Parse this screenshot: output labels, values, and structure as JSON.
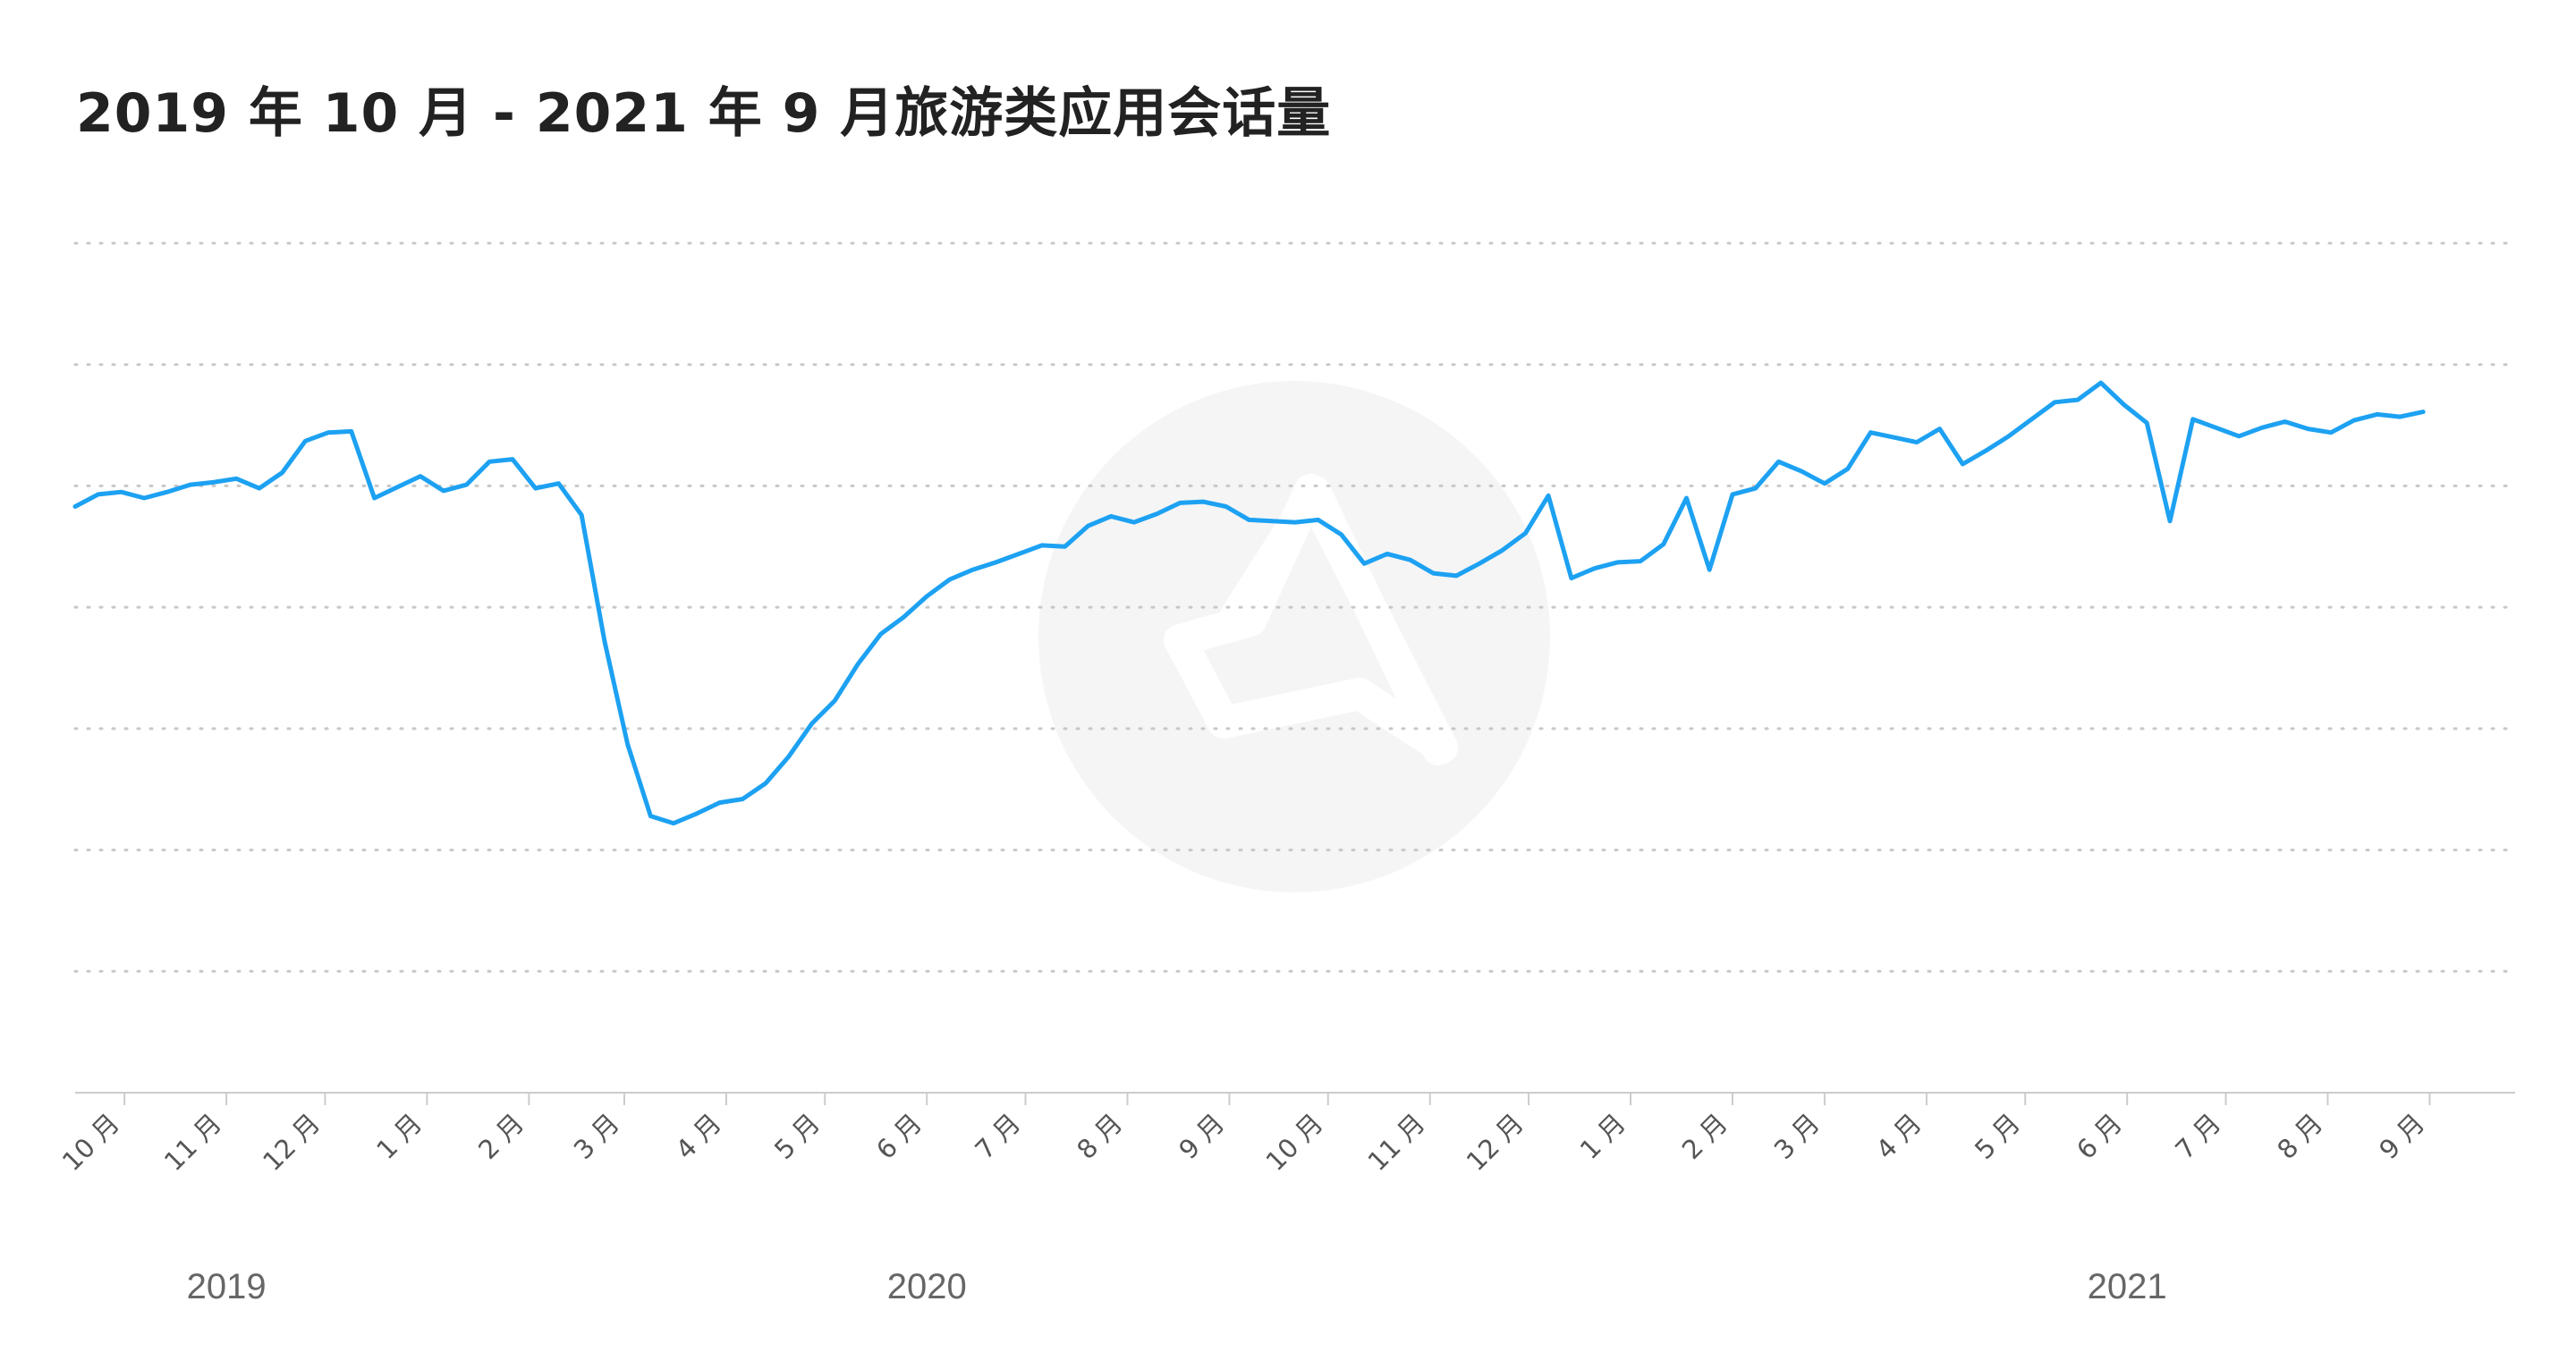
{
  "chart_data": {
    "type": "line",
    "title": "2019 年 10 月 - 2021 年 9 月旅游类应用会话量",
    "xlabel": "",
    "ylabel": "",
    "y_axis_labels_visible": false,
    "ylim": [
      0,
      70
    ],
    "grid": "horizontal dotted",
    "legend": "none",
    "tick_labels": [
      "10 月",
      "11 月",
      "12 月",
      "1 月",
      "2 月",
      "3 月",
      "4 月",
      "5 月",
      "6 月",
      "7 月",
      "8 月",
      "9 月",
      "10 月",
      "11 月",
      "12 月",
      "1 月",
      "2 月",
      "3 月",
      "4 月",
      "5 月",
      "6 月",
      "7 月",
      "8 月",
      "9 月"
    ],
    "tick_dates": [
      "2019-10-01",
      "2019-11-01",
      "2019-12-01",
      "2020-01-01",
      "2020-02-01",
      "2020-03-01",
      "2020-04-01",
      "2020-05-01",
      "2020-06-01",
      "2020-07-01",
      "2020-08-01",
      "2020-09-01",
      "2020-10-01",
      "2020-11-01",
      "2020-12-01",
      "2021-01-01",
      "2021-02-01",
      "2021-03-01",
      "2021-04-01",
      "2021-05-01",
      "2021-06-01",
      "2021-07-01",
      "2021-08-01",
      "2021-09-01"
    ],
    "year_labels": [
      {
        "text": "2019",
        "date": "2019-11-01"
      },
      {
        "text": "2020",
        "date": "2020-06-01"
      },
      {
        "text": "2021",
        "date": "2021-06-01"
      }
    ],
    "x_range": [
      "2019-09-16",
      "2021-09-27"
    ],
    "series": [
      {
        "color": "#1da1f2",
        "points": [
          [
            "2019-09-16",
            48.3
          ],
          [
            "2019-09-23",
            49.3
          ],
          [
            "2019-09-30",
            49.5
          ],
          [
            "2019-10-07",
            49.0
          ],
          [
            "2019-10-14",
            49.5
          ],
          [
            "2019-10-21",
            50.1
          ],
          [
            "2019-10-28",
            50.3
          ],
          [
            "2019-11-04",
            50.6
          ],
          [
            "2019-11-11",
            49.8
          ],
          [
            "2019-11-18",
            51.1
          ],
          [
            "2019-11-25",
            53.7
          ],
          [
            "2019-12-02",
            54.4
          ],
          [
            "2019-12-09",
            54.5
          ],
          [
            "2019-12-16",
            49.0
          ],
          [
            "2019-12-23",
            49.9
          ],
          [
            "2019-12-30",
            50.8
          ],
          [
            "2020-01-06",
            49.6
          ],
          [
            "2020-01-13",
            50.1
          ],
          [
            "2020-01-20",
            52.0
          ],
          [
            "2020-01-27",
            52.2
          ],
          [
            "2020-02-03",
            49.8
          ],
          [
            "2020-02-10",
            50.2
          ],
          [
            "2020-02-17",
            47.6
          ],
          [
            "2020-02-24",
            37.2
          ],
          [
            "2020-03-02",
            28.7
          ],
          [
            "2020-03-09",
            22.8
          ],
          [
            "2020-03-16",
            22.2
          ],
          [
            "2020-03-23",
            23.0
          ],
          [
            "2020-03-30",
            23.9
          ],
          [
            "2020-04-06",
            24.2
          ],
          [
            "2020-04-13",
            25.5
          ],
          [
            "2020-04-20",
            27.7
          ],
          [
            "2020-04-27",
            30.4
          ],
          [
            "2020-05-04",
            32.3
          ],
          [
            "2020-05-11",
            35.3
          ],
          [
            "2020-05-18",
            37.8
          ],
          [
            "2020-05-25",
            39.2
          ],
          [
            "2020-06-01",
            40.9
          ],
          [
            "2020-06-08",
            42.3
          ],
          [
            "2020-06-15",
            43.1
          ],
          [
            "2020-06-22",
            43.7
          ],
          [
            "2020-06-29",
            44.4
          ],
          [
            "2020-07-06",
            45.1
          ],
          [
            "2020-07-13",
            45.0
          ],
          [
            "2020-07-20",
            46.7
          ],
          [
            "2020-07-27",
            47.5
          ],
          [
            "2020-08-03",
            47.0
          ],
          [
            "2020-08-10",
            47.7
          ],
          [
            "2020-08-17",
            48.6
          ],
          [
            "2020-08-24",
            48.7
          ],
          [
            "2020-08-31",
            48.3
          ],
          [
            "2020-09-07",
            47.2
          ],
          [
            "2020-09-14",
            47.1
          ],
          [
            "2020-09-21",
            47.0
          ],
          [
            "2020-09-28",
            47.2
          ],
          [
            "2020-10-05",
            46.0
          ],
          [
            "2020-10-12",
            43.6
          ],
          [
            "2020-10-19",
            44.4
          ],
          [
            "2020-10-26",
            43.9
          ],
          [
            "2020-11-02",
            42.8
          ],
          [
            "2020-11-09",
            42.6
          ],
          [
            "2020-11-16",
            43.6
          ],
          [
            "2020-11-23",
            44.7
          ],
          [
            "2020-11-30",
            46.1
          ],
          [
            "2020-12-07",
            49.2
          ],
          [
            "2020-12-14",
            42.4
          ],
          [
            "2020-12-21",
            43.2
          ],
          [
            "2020-12-28",
            43.7
          ],
          [
            "2021-01-04",
            43.8
          ],
          [
            "2021-01-11",
            45.2
          ],
          [
            "2021-01-18",
            49.0
          ],
          [
            "2021-01-25",
            43.1
          ],
          [
            "2021-02-01",
            49.3
          ],
          [
            "2021-02-08",
            49.8
          ],
          [
            "2021-02-15",
            52.0
          ],
          [
            "2021-02-22",
            51.2
          ],
          [
            "2021-03-01",
            50.2
          ],
          [
            "2021-03-08",
            51.4
          ],
          [
            "2021-03-15",
            54.4
          ],
          [
            "2021-03-22",
            54.0
          ],
          [
            "2021-03-29",
            53.6
          ],
          [
            "2021-04-05",
            54.7
          ],
          [
            "2021-04-12",
            51.8
          ],
          [
            "2021-04-19",
            52.9
          ],
          [
            "2021-04-26",
            54.1
          ],
          [
            "2021-05-03",
            55.5
          ],
          [
            "2021-05-10",
            56.9
          ],
          [
            "2021-05-17",
            57.1
          ],
          [
            "2021-05-24",
            58.5
          ],
          [
            "2021-05-31",
            56.7
          ],
          [
            "2021-06-07",
            55.2
          ],
          [
            "2021-06-14",
            47.1
          ],
          [
            "2021-06-21",
            55.5
          ],
          [
            "2021-06-28",
            54.8
          ],
          [
            "2021-07-05",
            54.1
          ],
          [
            "2021-07-12",
            54.8
          ],
          [
            "2021-07-19",
            55.3
          ],
          [
            "2021-07-26",
            54.7
          ],
          [
            "2021-08-02",
            54.4
          ],
          [
            "2021-08-09",
            55.4
          ],
          [
            "2021-08-16",
            55.9
          ],
          [
            "2021-08-23",
            55.7
          ],
          [
            "2021-08-30",
            56.1
          ]
        ]
      }
    ]
  }
}
